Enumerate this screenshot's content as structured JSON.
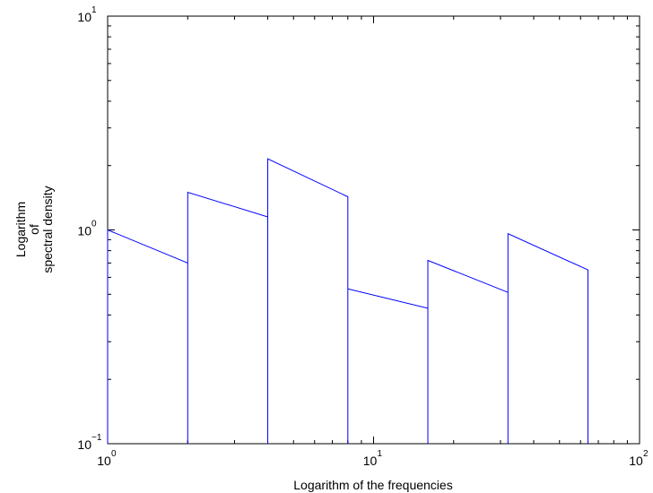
{
  "chart_data": {
    "type": "line",
    "title": "",
    "xlabel": "Logarithm of the frequencies",
    "ylabel_lines": [
      "Logarithm",
      "of",
      "spectral density"
    ],
    "xscale": "log",
    "yscale": "log",
    "xlim": [
      1,
      100
    ],
    "ylim": [
      0.1,
      10
    ],
    "grid": false,
    "legend": "none",
    "line_color": "#0000ff",
    "x_ticks": [
      {
        "base": "10",
        "exp": "0",
        "value": 1
      },
      {
        "base": "10",
        "exp": "1",
        "value": 10
      },
      {
        "base": "10",
        "exp": "2",
        "value": 100
      }
    ],
    "y_ticks": [
      {
        "base": "10",
        "exp": "−1",
        "value": 0.1
      },
      {
        "base": "10",
        "exp": "0",
        "value": 1
      },
      {
        "base": "10",
        "exp": "1",
        "value": 10
      }
    ],
    "series": [
      {
        "x": [
          1,
          1,
          2,
          2,
          2,
          4,
          4,
          4,
          8,
          8,
          8,
          16,
          16,
          16,
          32,
          32,
          32,
          64,
          64
        ],
        "y": [
          0.1,
          1.0,
          0.7,
          0.1,
          1.5,
          1.15,
          0.1,
          2.15,
          1.43,
          0.1,
          0.53,
          0.43,
          0.1,
          0.72,
          0.51,
          0.1,
          0.96,
          0.65,
          0.1
        ]
      }
    ]
  }
}
